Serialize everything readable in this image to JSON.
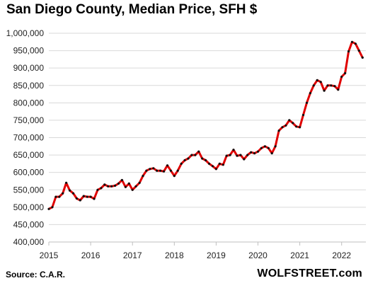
{
  "source": "Source: C.A.R.",
  "brand": "WOLFSTREET.com",
  "chart_data": {
    "type": "line",
    "title": "San Diego County, Median Price, SFH $",
    "xlabel": "",
    "ylabel": "",
    "ylim": [
      400000,
      1000000
    ],
    "yticks": [
      400000,
      450000,
      500000,
      550000,
      600000,
      650000,
      700000,
      750000,
      800000,
      850000,
      900000,
      950000,
      1000000
    ],
    "ytick_labels": [
      "400,000",
      "450,000",
      "500,000",
      "550,000",
      "600,000",
      "650,000",
      "700,000",
      "750,000",
      "800,000",
      "850,000",
      "900,000",
      "950,000",
      "1,000,000"
    ],
    "xlim": [
      2015,
      2022.58
    ],
    "xticks": [
      2015,
      2016,
      2017,
      2018,
      2019,
      2020,
      2021,
      2022
    ],
    "xtick_labels": [
      "2015",
      "2016",
      "2017",
      "2018",
      "2019",
      "2020",
      "2021",
      "2022"
    ],
    "grid": true,
    "legend": "none",
    "colors": {
      "line": "#e00000",
      "markers": "#111111",
      "grid": "#d9d9d9"
    },
    "series": [
      {
        "frequency": "monthly",
        "start": "2015-01",
        "values": [
          495000,
          500000,
          530000,
          530000,
          540000,
          570000,
          548000,
          540000,
          525000,
          520000,
          532000,
          530000,
          530000,
          524000,
          550000,
          555000,
          565000,
          560000,
          560000,
          562000,
          568000,
          578000,
          558000,
          568000,
          550000,
          560000,
          570000,
          590000,
          605000,
          610000,
          612000,
          605000,
          605000,
          603000,
          620000,
          605000,
          590000,
          605000,
          625000,
          635000,
          640000,
          650000,
          650000,
          660000,
          640000,
          635000,
          625000,
          618000,
          610000,
          625000,
          622000,
          648000,
          650000,
          665000,
          648000,
          650000,
          638000,
          650000,
          658000,
          655000,
          660000,
          670000,
          675000,
          670000,
          655000,
          675000,
          720000,
          730000,
          735000,
          750000,
          742000,
          732000,
          730000,
          765000,
          800000,
          828000,
          850000,
          865000,
          860000,
          835000,
          850000,
          850000,
          848000,
          838000,
          875000,
          885000,
          948000,
          975000,
          970000,
          950000,
          930000
        ]
      }
    ]
  }
}
